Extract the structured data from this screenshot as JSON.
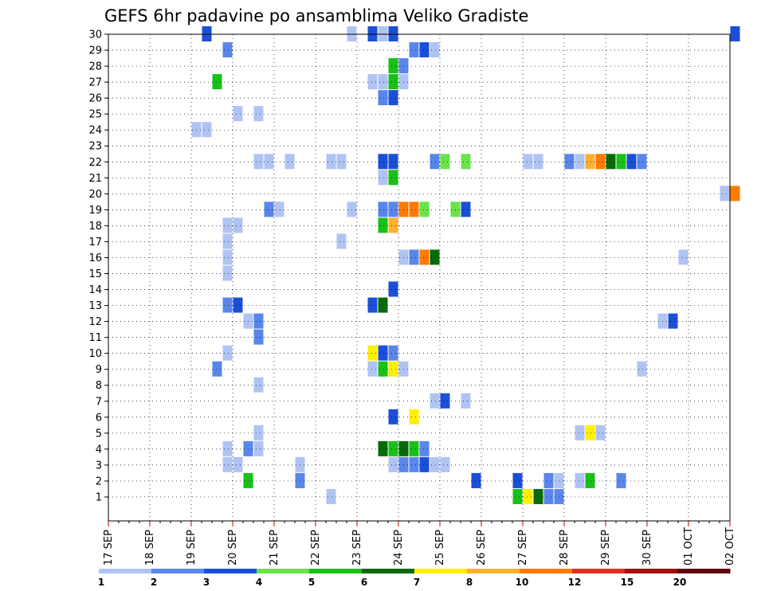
{
  "chart_data": {
    "type": "heatmap",
    "title": "GEFS 6hr padavine po ansamblima Veliko Gradiste",
    "x_ticks": [
      "17 SEP",
      "18 SEP",
      "19 SEP",
      "20 SEP",
      "21 SEP",
      "22 SEP",
      "23 SEP",
      "24 SEP",
      "25 SEP",
      "26 SEP",
      "27 SEP",
      "28 SEP",
      "29 SEP",
      "30 SEP",
      "01 OCT",
      "02 OCT"
    ],
    "y_ticks": [
      1,
      2,
      3,
      4,
      5,
      6,
      7,
      8,
      9,
      10,
      11,
      12,
      13,
      14,
      15,
      16,
      17,
      18,
      19,
      20,
      21,
      22,
      23,
      24,
      25,
      26,
      27,
      28,
      29,
      30
    ],
    "x_range": [
      "17 SEP 00Z",
      "02 OCT 00Z"
    ],
    "time_step_hours": 6,
    "grid": true,
    "colorbar": {
      "labels": [
        "1",
        "2",
        "3",
        "4",
        "5",
        "6",
        "7",
        "8",
        "10",
        "12",
        "15",
        "20"
      ],
      "colors": [
        "#b0c4f4",
        "#5a86ec",
        "#1b4fd8",
        "#6ae34a",
        "#18c018",
        "#0a6a0a",
        "#fff000",
        "#ffb030",
        "#ff7a00",
        "#e03020",
        "#a01010",
        "#600010"
      ]
    },
    "cells_format": "[time step index from 17 SEP 00Z, ensemble member, colour class 1-12]",
    "cells": [
      [
        21,
        1,
        1
      ],
      [
        39,
        1,
        5
      ],
      [
        40,
        1,
        7
      ],
      [
        41,
        1,
        6
      ],
      [
        42,
        1,
        2
      ],
      [
        43,
        1,
        2
      ],
      [
        13,
        2,
        5
      ],
      [
        18,
        2,
        2
      ],
      [
        35,
        2,
        3
      ],
      [
        39,
        2,
        3
      ],
      [
        42,
        2,
        2
      ],
      [
        43,
        2,
        1
      ],
      [
        45,
        2,
        1
      ],
      [
        46,
        2,
        5
      ],
      [
        49,
        2,
        2
      ],
      [
        11,
        3,
        1
      ],
      [
        12,
        3,
        1
      ],
      [
        18,
        3,
        1
      ],
      [
        27,
        3,
        1
      ],
      [
        28,
        3,
        2
      ],
      [
        29,
        3,
        2
      ],
      [
        30,
        3,
        3
      ],
      [
        31,
        3,
        1
      ],
      [
        32,
        3,
        1
      ],
      [
        11,
        4,
        1
      ],
      [
        13,
        4,
        2
      ],
      [
        14,
        4,
        1
      ],
      [
        26,
        4,
        6
      ],
      [
        27,
        4,
        5
      ],
      [
        28,
        4,
        6
      ],
      [
        29,
        4,
        5
      ],
      [
        30,
        4,
        2
      ],
      [
        14,
        5,
        1
      ],
      [
        45,
        5,
        1
      ],
      [
        46,
        5,
        7
      ],
      [
        47,
        5,
        1
      ],
      [
        27,
        6,
        3
      ],
      [
        29,
        6,
        7
      ],
      [
        31,
        7,
        1
      ],
      [
        32,
        7,
        3
      ],
      [
        34,
        7,
        1
      ],
      [
        14,
        8,
        1
      ],
      [
        10,
        9,
        2
      ],
      [
        25,
        9,
        1
      ],
      [
        26,
        9,
        5
      ],
      [
        27,
        9,
        7
      ],
      [
        28,
        9,
        1
      ],
      [
        51,
        9,
        1
      ],
      [
        25,
        10,
        7
      ],
      [
        26,
        10,
        3
      ],
      [
        27,
        10,
        2
      ],
      [
        11,
        10,
        1
      ],
      [
        14,
        11,
        2
      ],
      [
        13,
        12,
        1
      ],
      [
        14,
        12,
        2
      ],
      [
        53,
        12,
        1
      ],
      [
        54,
        12,
        3
      ],
      [
        11,
        13,
        2
      ],
      [
        12,
        13,
        3
      ],
      [
        25,
        13,
        3
      ],
      [
        26,
        13,
        6
      ],
      [
        27,
        14,
        3
      ],
      [
        11,
        15,
        1
      ],
      [
        11,
        16,
        1
      ],
      [
        28,
        16,
        1
      ],
      [
        29,
        16,
        2
      ],
      [
        30,
        16,
        9
      ],
      [
        31,
        16,
        6
      ],
      [
        55,
        16,
        1
      ],
      [
        11,
        17,
        1
      ],
      [
        22,
        17,
        1
      ],
      [
        11,
        18,
        1
      ],
      [
        12,
        18,
        1
      ],
      [
        26,
        18,
        5
      ],
      [
        27,
        18,
        8
      ],
      [
        15,
        19,
        2
      ],
      [
        16,
        19,
        1
      ],
      [
        23,
        19,
        1
      ],
      [
        26,
        19,
        2
      ],
      [
        27,
        19,
        2
      ],
      [
        28,
        19,
        9
      ],
      [
        29,
        19,
        9
      ],
      [
        30,
        19,
        4
      ],
      [
        33,
        19,
        4
      ],
      [
        34,
        19,
        3
      ],
      [
        26,
        21,
        1
      ],
      [
        27,
        21,
        5
      ],
      [
        14,
        22,
        1
      ],
      [
        15,
        22,
        1
      ],
      [
        17,
        22,
        1
      ],
      [
        21,
        22,
        1
      ],
      [
        22,
        22,
        1
      ],
      [
        26,
        22,
        3
      ],
      [
        27,
        22,
        3
      ],
      [
        31,
        22,
        2
      ],
      [
        32,
        22,
        4
      ],
      [
        34,
        22,
        4
      ],
      [
        40,
        22,
        1
      ],
      [
        41,
        22,
        1
      ],
      [
        44,
        22,
        2
      ],
      [
        45,
        22,
        1
      ],
      [
        46,
        22,
        8
      ],
      [
        47,
        22,
        9
      ],
      [
        48,
        22,
        6
      ],
      [
        49,
        22,
        5
      ],
      [
        50,
        22,
        3
      ],
      [
        51,
        22,
        2
      ],
      [
        8,
        24,
        1
      ],
      [
        9,
        24,
        1
      ],
      [
        12,
        25,
        1
      ],
      [
        14,
        25,
        1
      ],
      [
        26,
        26,
        2
      ],
      [
        27,
        26,
        3
      ],
      [
        10,
        27,
        5
      ],
      [
        25,
        27,
        1
      ],
      [
        26,
        27,
        1
      ],
      [
        27,
        27,
        5
      ],
      [
        28,
        27,
        1
      ],
      [
        27,
        28,
        5
      ],
      [
        28,
        28,
        2
      ],
      [
        11,
        29,
        2
      ],
      [
        29,
        29,
        2
      ],
      [
        30,
        29,
        3
      ],
      [
        31,
        29,
        1
      ],
      [
        9,
        30,
        3
      ],
      [
        23,
        30,
        1
      ],
      [
        25,
        30,
        3
      ],
      [
        26,
        30,
        1
      ],
      [
        27,
        30,
        3
      ],
      [
        59,
        20,
        1
      ],
      [
        60,
        20,
        9
      ],
      [
        60,
        30,
        3
      ]
    ]
  }
}
